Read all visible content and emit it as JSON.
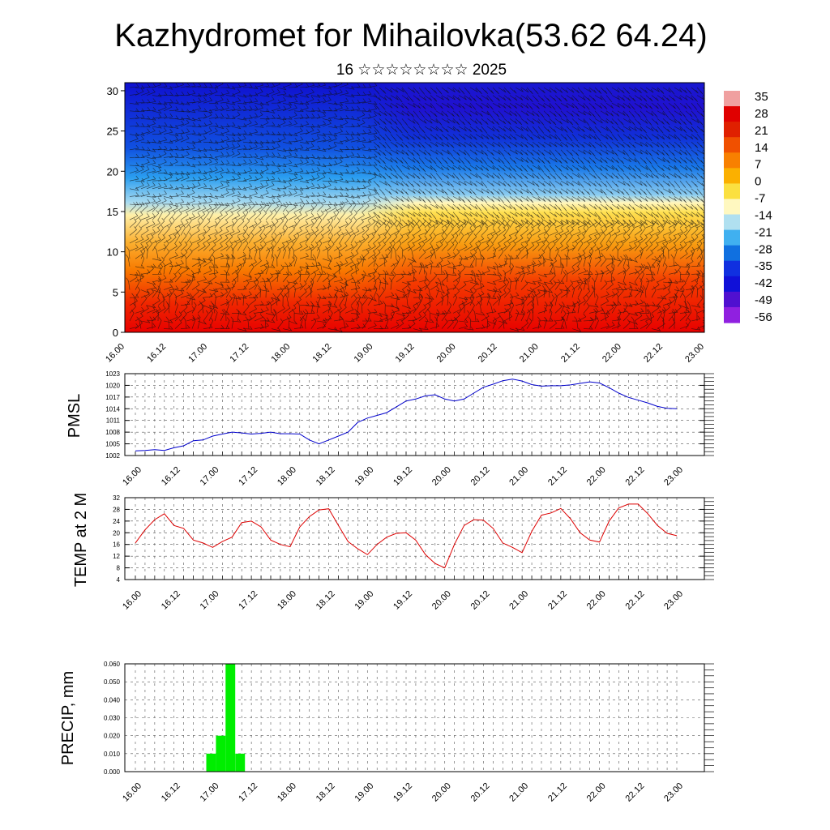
{
  "title": "Kazhydromet for Mihailovka(53.62 64.24)",
  "subtitle": "16 ☆☆☆☆☆☆☆☆ 2025",
  "colors": {
    "pmsl_line": "#0000cc",
    "temp_line": "#dd0000",
    "precip_bar": "#00ee00"
  },
  "chart_data": [
    {
      "type": "heatmap",
      "name": "upper-air-temperature-wind",
      "x_ticks": [
        "16.00",
        "16.12",
        "17.00",
        "17.12",
        "18.00",
        "18.12",
        "19.00",
        "19.12",
        "20.00",
        "20.12",
        "21.00",
        "21.12",
        "22.00",
        "22.12",
        "23.00"
      ],
      "y_ticks": [
        0,
        5,
        10,
        15,
        20,
        25,
        30
      ],
      "ylim": [
        0,
        31
      ],
      "colorbar_labels": [
        "35",
        "28",
        "21",
        "14",
        "7",
        "0",
        "-7",
        "-14",
        "-21",
        "-28",
        "-35",
        "-42",
        "-49",
        "-56"
      ],
      "colorbar_colors": [
        "#f0a0a0",
        "#e00000",
        "#e02000",
        "#f05000",
        "#f88000",
        "#fbb000",
        "#fbe040",
        "#fff8c0",
        "#b0e0f0",
        "#40b0f0",
        "#1070e0",
        "#1030e0",
        "#1010d8",
        "#5010d0",
        "#9020e0"
      ],
      "field_note_levels": "warm near ground, cold aloft; wind barbs overlay"
    },
    {
      "type": "line",
      "ylabel": "PMSL",
      "ylim": [
        1002,
        1023
      ],
      "y_ticks": [
        1002,
        1005,
        1008,
        1011,
        1014,
        1017,
        1020,
        1023
      ],
      "x_ticks": [
        "16.00",
        "16.12",
        "17.00",
        "17.12",
        "18.00",
        "18.12",
        "19.00",
        "19.12",
        "20.00",
        "20.12",
        "21.00",
        "21.12",
        "22.00",
        "22.12",
        "23.00"
      ],
      "x_hours": [
        0,
        3,
        6,
        9,
        12,
        15,
        18,
        21,
        24,
        27,
        30,
        33,
        36,
        39,
        42,
        45,
        48,
        51,
        54,
        57,
        60,
        63,
        66,
        69,
        72,
        75,
        78,
        81,
        84,
        87,
        90,
        93,
        96,
        99,
        102,
        105,
        108,
        111,
        114,
        117,
        120,
        123,
        126,
        129,
        132,
        135,
        138,
        141,
        144,
        147,
        150,
        153,
        156,
        159,
        162,
        165,
        168
      ],
      "values": [
        1003.2,
        1003.3,
        1003.5,
        1003.3,
        1004,
        1004.5,
        1005.8,
        1006,
        1007,
        1007.5,
        1008,
        1007.8,
        1007.5,
        1007.7,
        1008,
        1007.6,
        1007.6,
        1007.5,
        1006,
        1005,
        1006,
        1007,
        1008,
        1010.5,
        1011.6,
        1012.3,
        1013,
        1014.5,
        1016,
        1016.5,
        1017.3,
        1017.6,
        1016.5,
        1016,
        1016.5,
        1018,
        1019.5,
        1020.3,
        1021.2,
        1021.6,
        1021.1,
        1020.2,
        1019.8,
        1019.9,
        1019.9,
        1020.1,
        1020.5,
        1020.9,
        1020.6,
        1019.4,
        1018,
        1016.9,
        1016.2,
        1015.5,
        1014.6,
        1014.1,
        1014
      ]
    },
    {
      "type": "line",
      "ylabel": "TEMP at 2 M",
      "ylim": [
        4,
        32
      ],
      "y_ticks": [
        4,
        8,
        12,
        16,
        20,
        24,
        28,
        32
      ],
      "x_ticks": [
        "16.00",
        "16.12",
        "17.00",
        "17.12",
        "18.00",
        "18.12",
        "19.00",
        "19.12",
        "20.00",
        "20.12",
        "21.00",
        "21.12",
        "22.00",
        "22.12",
        "23.00"
      ],
      "x_hours": [
        0,
        3,
        6,
        9,
        12,
        15,
        18,
        21,
        24,
        27,
        30,
        33,
        36,
        39,
        42,
        45,
        48,
        51,
        54,
        57,
        60,
        63,
        66,
        69,
        72,
        75,
        78,
        81,
        84,
        87,
        90,
        93,
        96,
        99,
        102,
        105,
        108,
        111,
        114,
        117,
        120,
        123,
        126,
        129,
        132,
        135,
        138,
        141,
        144,
        147,
        150,
        153,
        156,
        159,
        162,
        165,
        168
      ],
      "values": [
        16.5,
        21,
        24.5,
        26.5,
        22.5,
        21.5,
        17.5,
        16.5,
        15,
        17,
        18.5,
        23.5,
        24,
        22,
        17.5,
        16,
        15.2,
        22,
        25.5,
        27.8,
        28.2,
        22.5,
        17,
        14.5,
        12.5,
        16,
        18.5,
        19.8,
        20,
        17.5,
        12.5,
        9.5,
        8,
        16,
        22.5,
        24.5,
        24.3,
        21.5,
        16.5,
        15,
        13.2,
        20.5,
        26,
        26.8,
        28.3,
        24.8,
        20,
        17.5,
        16.8,
        24,
        28.5,
        29.8,
        29.8,
        26.5,
        22.5,
        19.8,
        19
      ]
    },
    {
      "type": "bar",
      "ylabel": "PRECIP, mm",
      "ylim": [
        0,
        0.06
      ],
      "y_ticks": [
        "0.000",
        "0.010",
        "0.020",
        "0.030",
        "0.040",
        "0.050",
        "0.060"
      ],
      "x_ticks": [
        "16.00",
        "16.12",
        "17.00",
        "17.12",
        "18.00",
        "18.12",
        "19.00",
        "19.12",
        "20.00",
        "20.12",
        "21.00",
        "21.12",
        "22.00",
        "22.12",
        "23.00"
      ],
      "bars": [
        {
          "start_hour": 22,
          "end_hour": 25,
          "value": 0.01
        },
        {
          "start_hour": 25,
          "end_hour": 28,
          "value": 0.02
        },
        {
          "start_hour": 28,
          "end_hour": 31,
          "value": 0.06
        },
        {
          "start_hour": 31,
          "end_hour": 34,
          "value": 0.01
        }
      ]
    }
  ]
}
